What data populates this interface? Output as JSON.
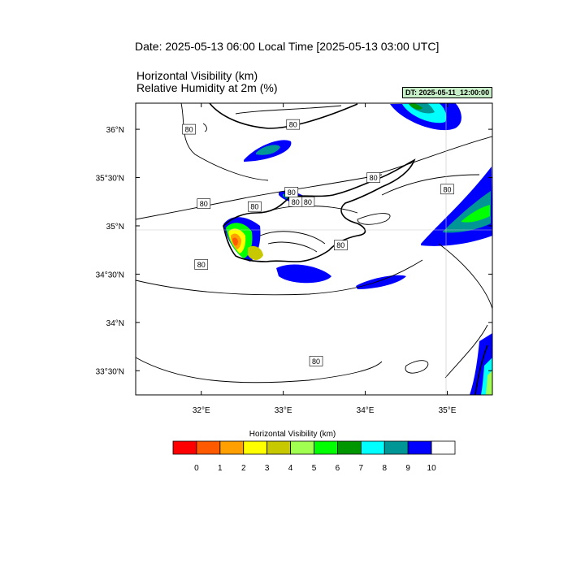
{
  "header": {
    "date_title": "Date: 2025-05-13  06:00 Local Time [2025-05-13  03:00 UTC]",
    "variable_line_1": "Horizontal Visibility   (km)",
    "variable_line_2": "Relative Humidity at 2m   (%)",
    "dt_badge": "DT: 2025-05-11_12:00:00"
  },
  "map": {
    "region": "Cyprus",
    "lon_range": [
      31.2,
      35.55
    ],
    "lat_range": [
      33.25,
      36.27
    ],
    "x_ticks": [
      {
        "lon": 32,
        "label": "32°E"
      },
      {
        "lon": 33,
        "label": "33°E"
      },
      {
        "lon": 34,
        "label": "34°E"
      },
      {
        "lon": 35,
        "label": "35°E"
      }
    ],
    "y_ticks": [
      {
        "lat": 36.0,
        "label": "36°N"
      },
      {
        "lat": 35.5,
        "label": "35°30'N"
      },
      {
        "lat": 35.0,
        "label": "35°N"
      },
      {
        "lat": 34.5,
        "label": "34°30'N"
      },
      {
        "lat": 34.0,
        "label": "34°N"
      },
      {
        "lat": 33.5,
        "label": "33°30'N"
      }
    ],
    "contour_label": "80",
    "contour_labels": [
      {
        "lon": 31.85,
        "lat": 36.0
      },
      {
        "lon": 33.12,
        "lat": 36.05
      },
      {
        "lon": 32.03,
        "lat": 35.23
      },
      {
        "lon": 33.1,
        "lat": 35.35
      },
      {
        "lon": 33.3,
        "lat": 35.25
      },
      {
        "lon": 32.65,
        "lat": 35.2
      },
      {
        "lon": 33.15,
        "lat": 35.25
      },
      {
        "lon": 34.1,
        "lat": 35.5
      },
      {
        "lon": 35.0,
        "lat": 35.38
      },
      {
        "lon": 33.7,
        "lat": 34.8
      },
      {
        "lon": 32.0,
        "lat": 34.6
      },
      {
        "lon": 33.4,
        "lat": 33.6
      }
    ]
  },
  "legend": {
    "title": "Horizontal Visibility  (km)",
    "colors": [
      "#ff0000",
      "#ff5a00",
      "#ffa000",
      "#ffff00",
      "#c8c800",
      "#a0ff50",
      "#00ff00",
      "#009600",
      "#00ffff",
      "#009696",
      "#0000ff",
      "#ffffff"
    ],
    "labels": [
      "0",
      "1",
      "2",
      "3",
      "4",
      "5",
      "6",
      "7",
      "8",
      "9",
      "10"
    ]
  }
}
